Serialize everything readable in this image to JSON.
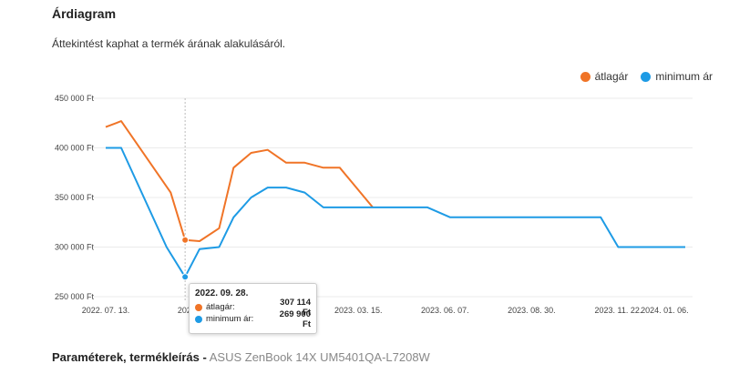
{
  "section": {
    "title": "Árdiagram",
    "subtitle": "Áttekintést kaphat a termék árának alakulásáról."
  },
  "legend": [
    {
      "label": "átlagár",
      "color": "#f07427"
    },
    {
      "label": "minimum ár",
      "color": "#1e9be5"
    }
  ],
  "tooltip": {
    "date": "2022. 09. 28.",
    "rows": [
      {
        "label": "átlagár:",
        "value": "307 114 Ft",
        "color": "#f07427"
      },
      {
        "label": "minimum ár:",
        "value": "269 900 Ft",
        "color": "#1e9be5"
      }
    ]
  },
  "footer": {
    "label": "Paraméterek, termékleírás -",
    "product": "ASUS ZenBook 14X UM5401QA-L7208W"
  },
  "chart_data": {
    "type": "line",
    "ylim": [
      250000,
      450000
    ],
    "yticks": [
      "250 000 Ft",
      "300 000 Ft",
      "350 000 Ft",
      "400 000 Ft",
      "450 000 Ft"
    ],
    "ytick_values": [
      250000,
      300000,
      350000,
      400000,
      450000
    ],
    "xlim": [
      "2022-07-13",
      "2024-01-26"
    ],
    "xticks": [
      {
        "date": "2022-07-13",
        "label": "2022. 07. 13."
      },
      {
        "date": "2022-10-04",
        "label": "2022. 0"
      },
      {
        "date": "2023-03-15",
        "label": "2023. 03. 15."
      },
      {
        "date": "2023-06-07",
        "label": "2023. 06. 07."
      },
      {
        "date": "2023-08-30",
        "label": "2023. 08. 30."
      },
      {
        "date": "2023-11-22",
        "label": "2023. 11. 22."
      },
      {
        "date": "2024-01-06",
        "label": "2024. 01. 06."
      }
    ],
    "grid": true,
    "legend_position": "top-right",
    "highlight_date": "2022-09-28",
    "series": [
      {
        "name": "átlagár",
        "color": "#f07427",
        "points": [
          [
            "2022-07-13",
            421000
          ],
          [
            "2022-07-28",
            427000
          ],
          [
            "2022-09-14",
            355000
          ],
          [
            "2022-09-28",
            307114
          ],
          [
            "2022-10-12",
            306000
          ],
          [
            "2022-10-31",
            319000
          ],
          [
            "2022-11-14",
            380000
          ],
          [
            "2022-12-01",
            395000
          ],
          [
            "2022-12-17",
            398000
          ],
          [
            "2023-01-04",
            385000
          ],
          [
            "2023-01-22",
            385000
          ],
          [
            "2023-02-09",
            380000
          ],
          [
            "2023-02-25",
            380000
          ],
          [
            "2023-03-29",
            340000
          ]
        ]
      },
      {
        "name": "minimum ár",
        "color": "#1e9be5",
        "points": [
          [
            "2022-07-13",
            400000
          ],
          [
            "2022-07-28",
            400000
          ],
          [
            "2022-09-10",
            300000
          ],
          [
            "2022-09-28",
            269900
          ],
          [
            "2022-10-12",
            298000
          ],
          [
            "2022-10-31",
            300000
          ],
          [
            "2022-11-14",
            330000
          ],
          [
            "2022-12-01",
            350000
          ],
          [
            "2022-12-17",
            360000
          ],
          [
            "2023-01-04",
            360000
          ],
          [
            "2023-01-22",
            355000
          ],
          [
            "2023-02-09",
            340000
          ],
          [
            "2023-03-29",
            340000
          ],
          [
            "2023-05-21",
            340000
          ],
          [
            "2023-06-12",
            330000
          ],
          [
            "2023-07-28",
            330000
          ],
          [
            "2023-11-05",
            330000
          ],
          [
            "2023-11-22",
            300000
          ],
          [
            "2024-01-26",
            300000
          ]
        ]
      }
    ]
  }
}
